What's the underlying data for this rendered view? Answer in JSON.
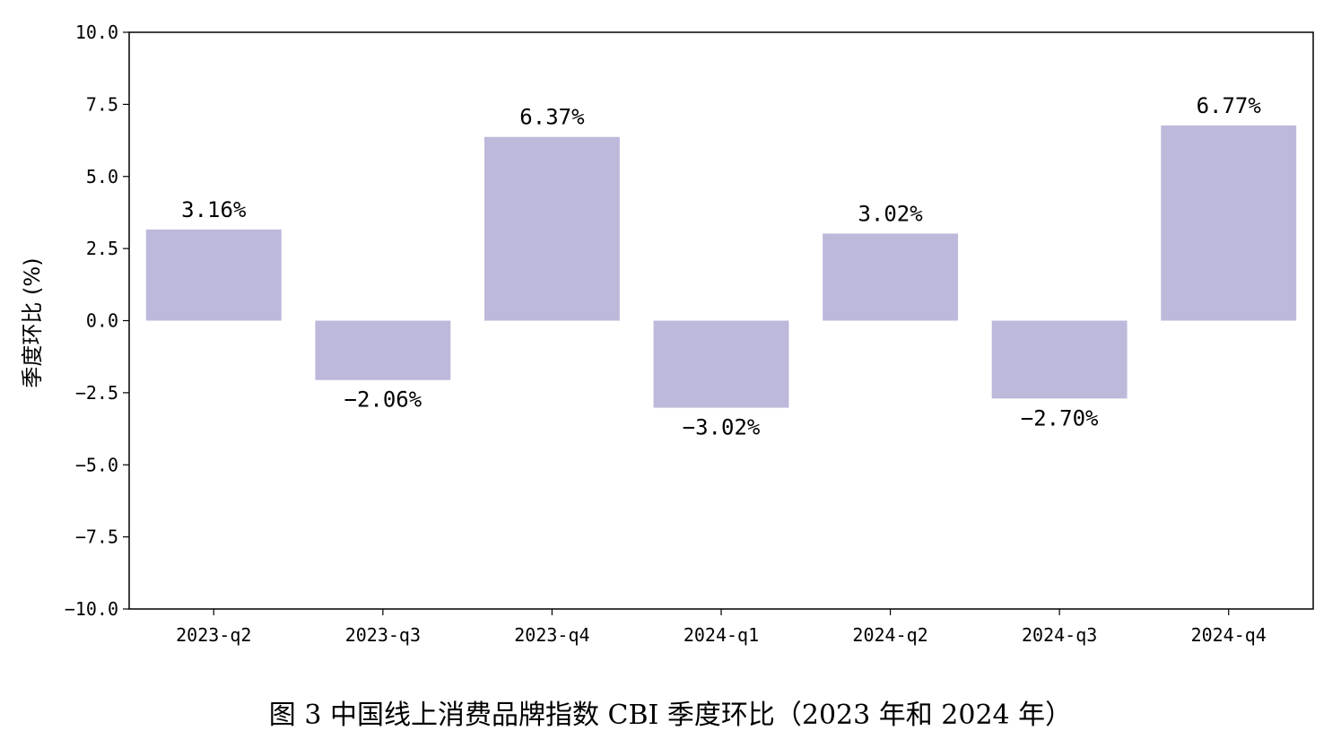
{
  "caption": "图 3 中国线上消费品牌指数 CBI 季度环比（2023 年和 2024 年）",
  "chart_data": {
    "type": "bar",
    "title": "",
    "xlabel": "",
    "ylabel": "季度环比 (%)",
    "ylim": [
      -10,
      10
    ],
    "yticks": [
      10,
      7.5,
      5,
      2.5,
      0,
      -2.5,
      -5,
      -7.5,
      -10
    ],
    "ytick_labels": [
      "10.0",
      "7.5",
      "5.0",
      "2.5",
      "0.0",
      "−2.5",
      "−5.0",
      "−7.5",
      "−10.0"
    ],
    "categories": [
      "2023-q2",
      "2023-q3",
      "2023-q4",
      "2024-q1",
      "2024-q2",
      "2024-q3",
      "2024-q4"
    ],
    "values": [
      3.16,
      -2.06,
      6.37,
      -3.02,
      3.02,
      -2.7,
      6.77
    ],
    "data_labels": [
      "3.16%",
      "−2.06%",
      "6.37%",
      "−3.02%",
      "3.02%",
      "−2.70%",
      "6.77%"
    ],
    "bar_color": "#bcb9da",
    "grid": false,
    "legend": "none"
  }
}
